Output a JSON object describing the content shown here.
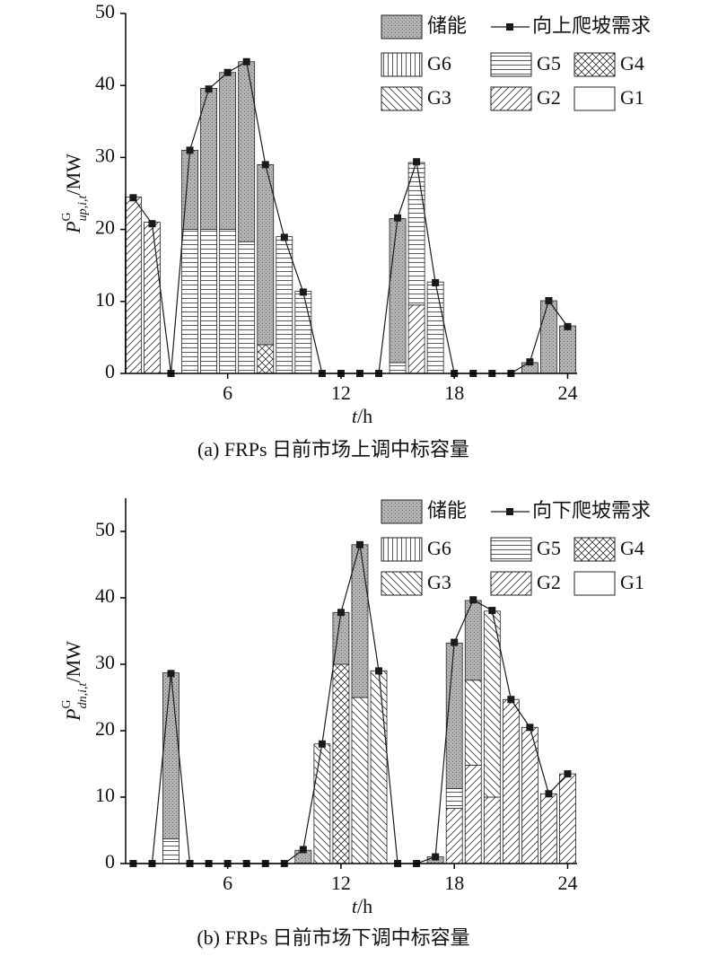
{
  "chart_data": [
    {
      "type": "bar",
      "stacked": true,
      "legend": "upper right",
      "caption": "(a) FRPs 日前市场上调中标容量",
      "xlabel": {
        "main": "t",
        "unit": "/h"
      },
      "ylabel": {
        "main": "P",
        "sup": "G",
        "sub": "up,i,t",
        "unit": "/MW"
      },
      "x": [
        1,
        2,
        3,
        4,
        5,
        6,
        7,
        8,
        9,
        10,
        11,
        12,
        13,
        14,
        15,
        16,
        17,
        18,
        19,
        20,
        21,
        22,
        23,
        24
      ],
      "xlim": [
        0.6,
        24.5
      ],
      "xticks": [
        6,
        12,
        18,
        24
      ],
      "ylim": [
        0,
        50
      ],
      "yticks": [
        0,
        10,
        20,
        30,
        40,
        50
      ],
      "series": [
        {
          "name": "G1",
          "type": "bar",
          "pattern": "none",
          "color": "#ffffff",
          "values": [
            0,
            0,
            0,
            0,
            0,
            0,
            0,
            0,
            0,
            0,
            0,
            0,
            0,
            0,
            0,
            0,
            0,
            0,
            0,
            0,
            0,
            0,
            0,
            0
          ]
        },
        {
          "name": "G2",
          "type": "bar",
          "pattern": "slash",
          "color": "#ffffff",
          "values": [
            24.5,
            21,
            0,
            0,
            0,
            0,
            0,
            0,
            0,
            0,
            0,
            0,
            0,
            0,
            0,
            9.5,
            0,
            0,
            0,
            0,
            0,
            0,
            0,
            0
          ]
        },
        {
          "name": "G3",
          "type": "bar",
          "pattern": "backslash",
          "color": "#ffffff",
          "values": [
            0,
            0,
            0,
            0,
            0,
            0,
            0,
            0,
            0,
            0,
            0,
            0,
            0,
            0,
            0,
            0,
            0,
            0,
            0,
            0,
            0,
            0,
            0,
            0
          ]
        },
        {
          "name": "G4",
          "type": "bar",
          "pattern": "crosshatch",
          "color": "#ffffff",
          "values": [
            0,
            0,
            0,
            0,
            0,
            0,
            0,
            4,
            0,
            0,
            0,
            0,
            0,
            0,
            0,
            0,
            0,
            0,
            0,
            0,
            0,
            0,
            0,
            0
          ]
        },
        {
          "name": "G5",
          "type": "bar",
          "pattern": "horizontal",
          "color": "#ffffff",
          "values": [
            0,
            0,
            0,
            20,
            20,
            20,
            18.3,
            0,
            19,
            11.4,
            0,
            0,
            0,
            0,
            1.5,
            19.8,
            12.7,
            0,
            0,
            0,
            0,
            0,
            0,
            0
          ]
        },
        {
          "name": "G6",
          "type": "bar",
          "pattern": "vertical",
          "color": "#ffffff",
          "values": [
            0,
            0,
            0,
            0,
            0,
            0,
            0,
            0,
            0,
            0,
            0,
            0,
            0,
            0,
            0,
            0,
            0,
            0,
            0,
            0,
            0,
            0,
            0,
            0
          ]
        },
        {
          "name": "储能",
          "type": "bar",
          "pattern": "dots",
          "color": "#b3b3b3",
          "values": [
            0,
            0,
            0,
            11,
            19.6,
            21.8,
            25,
            25,
            0,
            0,
            0,
            0,
            0,
            0,
            20,
            0,
            0,
            0,
            0,
            0,
            0,
            1.5,
            10.1,
            6.6
          ]
        },
        {
          "name": "向上爬坡需求",
          "type": "line",
          "color": "#1a1a1a",
          "values": [
            24.4,
            20.8,
            0,
            31,
            39.5,
            41.8,
            43.3,
            29,
            18.9,
            11.3,
            0,
            0,
            0,
            0,
            21.6,
            29.4,
            12.6,
            0,
            0,
            0,
            0,
            1.6,
            10.1,
            6.5
          ]
        }
      ]
    },
    {
      "type": "bar",
      "stacked": true,
      "legend": "upper right",
      "caption": "(b) FRPs 日前市场下调中标容量",
      "xlabel": {
        "main": "t",
        "unit": "/h"
      },
      "ylabel": {
        "main": "P",
        "sup": "G",
        "sub": "dn,i,t",
        "unit": "/MW"
      },
      "x": [
        1,
        2,
        3,
        4,
        5,
        6,
        7,
        8,
        9,
        10,
        11,
        12,
        13,
        14,
        15,
        16,
        17,
        18,
        19,
        20,
        21,
        22,
        23,
        24
      ],
      "xlim": [
        0.6,
        24.5
      ],
      "xticks": [
        6,
        12,
        18,
        24
      ],
      "ylim": [
        0,
        55
      ],
      "yticks": [
        0,
        10,
        20,
        30,
        40,
        50
      ],
      "series": [
        {
          "name": "G1",
          "type": "bar",
          "pattern": "none",
          "color": "#ffffff",
          "values": [
            0,
            0,
            0,
            0,
            0,
            0,
            0,
            0,
            0,
            0,
            0,
            0,
            0,
            0,
            0,
            0,
            0,
            0,
            0,
            0,
            0,
            0,
            0,
            0
          ]
        },
        {
          "name": "G2",
          "type": "bar",
          "pattern": "slash",
          "color": "#ffffff",
          "values": [
            0,
            0,
            0,
            0,
            0,
            0,
            0,
            0,
            0,
            0,
            0,
            0,
            0,
            0,
            0,
            0,
            0,
            8.3,
            14.8,
            10,
            24.7,
            20.5,
            10.5,
            13.5
          ]
        },
        {
          "name": "G3",
          "type": "bar",
          "pattern": "backslash",
          "color": "#ffffff",
          "values": [
            0,
            0,
            0,
            0,
            0,
            0,
            0,
            0,
            0,
            0,
            18,
            0,
            25,
            29,
            0,
            0,
            0,
            0,
            12.8,
            28,
            0,
            0,
            0,
            0
          ]
        },
        {
          "name": "G4",
          "type": "bar",
          "pattern": "crosshatch",
          "color": "#ffffff",
          "values": [
            0,
            0,
            0,
            0,
            0,
            0,
            0,
            0,
            0,
            0,
            0,
            30,
            0,
            0,
            0,
            0,
            0,
            0,
            0,
            0,
            0,
            0,
            0,
            0
          ]
        },
        {
          "name": "G5",
          "type": "bar",
          "pattern": "horizontal",
          "color": "#ffffff",
          "values": [
            0,
            0,
            3.7,
            0,
            0,
            0,
            0,
            0,
            0,
            0,
            0,
            0,
            0,
            0,
            0,
            0,
            0,
            3,
            0,
            0,
            0,
            0,
            0,
            0
          ]
        },
        {
          "name": "G6",
          "type": "bar",
          "pattern": "vertical",
          "color": "#ffffff",
          "values": [
            0,
            0,
            0,
            0,
            0,
            0,
            0,
            0,
            0,
            0,
            0,
            0,
            0,
            0,
            0,
            0,
            0,
            0,
            0,
            0,
            0,
            0,
            0,
            0
          ]
        },
        {
          "name": "储能",
          "type": "bar",
          "pattern": "dots",
          "color": "#b3b3b3",
          "values": [
            0,
            0,
            25,
            0,
            0,
            0,
            0,
            0,
            0,
            2,
            0,
            7.8,
            23,
            0,
            0,
            0,
            1,
            21.9,
            12,
            0,
            0,
            0,
            0,
            0
          ]
        },
        {
          "name": "向下爬坡需求",
          "type": "line",
          "color": "#1a1a1a",
          "values": [
            0,
            0,
            28.6,
            0,
            0,
            0,
            0,
            0,
            0,
            2.1,
            18,
            37.8,
            48,
            29,
            0,
            0,
            1,
            33.3,
            39.7,
            38.1,
            24.7,
            20.5,
            10.5,
            13.5
          ]
        }
      ]
    }
  ]
}
